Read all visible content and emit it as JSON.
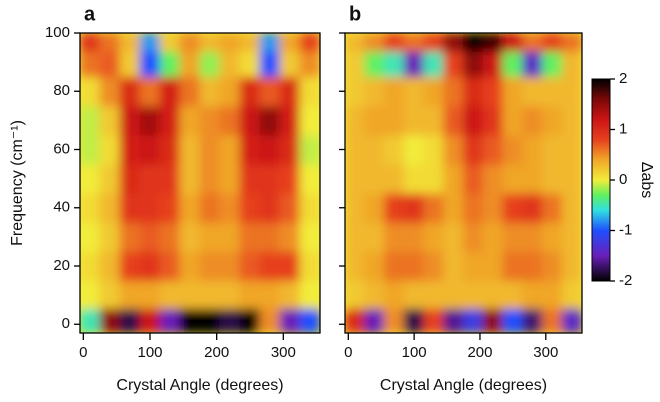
{
  "chart_data": [
    {
      "type": "heatmap",
      "title": "a",
      "xlabel": "Crystal Angle (degrees)",
      "ylabel": "Frequency (cm⁻¹)",
      "xlim": [
        -5,
        355
      ],
      "ylim": [
        -3,
        100
      ],
      "xticks": [
        0,
        100,
        200,
        300
      ],
      "yticks": [
        0,
        20,
        40,
        60,
        80,
        100
      ],
      "x": [
        10,
        40,
        70,
        100,
        130,
        160,
        190,
        220,
        250,
        280,
        310,
        340
      ],
      "y": [
        1,
        10,
        20,
        30,
        40,
        50,
        60,
        70,
        80,
        90,
        97.5
      ],
      "z": [
        [
          -0.5,
          1.5,
          -1.8,
          1.2,
          -1.5,
          2.0,
          -2.0,
          -1.8,
          -2.0,
          0.5,
          -1.5,
          -1.0
        ],
        [
          0.0,
          0.2,
          0.4,
          0.4,
          0.3,
          0.3,
          0.3,
          0.3,
          0.4,
          0.4,
          0.3,
          0.0
        ],
        [
          0.1,
          0.3,
          0.8,
          0.9,
          0.7,
          0.4,
          0.5,
          0.5,
          0.7,
          0.8,
          0.8,
          0.1
        ],
        [
          0.0,
          0.2,
          0.6,
          0.7,
          0.6,
          0.3,
          0.4,
          0.4,
          0.6,
          0.6,
          0.5,
          0.0
        ],
        [
          0.1,
          0.3,
          0.9,
          0.9,
          0.8,
          0.4,
          0.6,
          0.5,
          0.8,
          0.9,
          0.7,
          0.1
        ],
        [
          0.0,
          0.2,
          1.0,
          0.9,
          0.9,
          0.3,
          0.5,
          0.4,
          0.9,
          0.9,
          0.8,
          0.0
        ],
        [
          -0.1,
          0.1,
          1.1,
          1.2,
          1.0,
          0.3,
          0.5,
          0.4,
          1.1,
          1.2,
          1.0,
          -0.1
        ],
        [
          -0.1,
          0.2,
          1.2,
          1.4,
          1.1,
          0.4,
          0.5,
          0.6,
          1.2,
          1.5,
          1.1,
          0.0
        ],
        [
          0.1,
          0.5,
          1.0,
          0.6,
          1.1,
          0.6,
          0.3,
          0.4,
          1.0,
          0.7,
          1.0,
          0.1
        ],
        [
          0.6,
          0.7,
          0.2,
          -1.0,
          -0.3,
          0.4,
          -0.2,
          0.3,
          0.1,
          -1.0,
          0.2,
          0.5
        ],
        [
          0.9,
          0.6,
          0.3,
          -0.8,
          0.2,
          0.5,
          0.3,
          0.4,
          0.3,
          -0.8,
          0.4,
          0.8
        ]
      ],
      "colorscale": [
        {
          "value": -2,
          "color": "#000000"
        },
        {
          "value": -1.5,
          "color": "#6a1fb8"
        },
        {
          "value": -1,
          "color": "#1f4fff"
        },
        {
          "value": -0.6,
          "color": "#30e0e0"
        },
        {
          "value": -0.3,
          "color": "#60f060"
        },
        {
          "value": 0,
          "color": "#f2ec3a"
        },
        {
          "value": 0.4,
          "color": "#f0a628"
        },
        {
          "value": 0.8,
          "color": "#e6401e"
        },
        {
          "value": 1.2,
          "color": "#cc1414"
        },
        {
          "value": 1.6,
          "color": "#7a0808"
        },
        {
          "value": 2,
          "color": "#000000"
        }
      ]
    },
    {
      "type": "heatmap",
      "title": "b",
      "xlabel": "Crystal Angle (degrees)",
      "xlim": [
        -5,
        355
      ],
      "ylim": [
        -3,
        100
      ],
      "xticks": [
        0,
        100,
        200,
        300
      ],
      "yticks": [
        0,
        20,
        40,
        60,
        80,
        100
      ],
      "x": [
        10,
        40,
        70,
        100,
        130,
        160,
        190,
        220,
        250,
        280,
        310,
        340
      ],
      "y": [
        1,
        10,
        20,
        30,
        40,
        50,
        60,
        70,
        80,
        90,
        97.5
      ],
      "z": [
        [
          1.0,
          -1.5,
          0.5,
          -1.8,
          0.8,
          -1.6,
          -1.2,
          1.5,
          -1.0,
          -1.7,
          0.6,
          -1.4
        ],
        [
          0.2,
          0.3,
          0.4,
          0.3,
          0.3,
          0.3,
          0.3,
          0.3,
          0.3,
          0.4,
          0.4,
          0.2
        ],
        [
          0.3,
          0.4,
          0.6,
          0.6,
          0.5,
          0.3,
          0.4,
          0.4,
          0.6,
          0.6,
          0.5,
          0.3
        ],
        [
          0.3,
          0.3,
          0.5,
          0.5,
          0.4,
          0.3,
          0.5,
          0.4,
          0.5,
          0.5,
          0.4,
          0.3
        ],
        [
          0.3,
          0.4,
          0.8,
          0.9,
          0.6,
          0.4,
          0.6,
          0.5,
          0.8,
          0.9,
          0.6,
          0.3
        ],
        [
          0.3,
          0.3,
          0.3,
          0.1,
          0.1,
          0.4,
          0.7,
          0.5,
          0.4,
          0.4,
          0.3,
          0.3
        ],
        [
          0.3,
          0.3,
          0.2,
          0.0,
          0.1,
          0.5,
          0.9,
          0.7,
          0.5,
          0.4,
          0.3,
          0.3
        ],
        [
          0.3,
          0.4,
          0.4,
          0.3,
          0.3,
          0.7,
          1.2,
          0.9,
          0.4,
          0.5,
          0.4,
          0.3
        ],
        [
          0.2,
          0.3,
          0.4,
          0.3,
          0.4,
          0.6,
          1.0,
          0.8,
          0.4,
          0.3,
          0.3,
          0.3
        ],
        [
          0.2,
          -0.3,
          -0.5,
          -1.5,
          -0.5,
          0.8,
          1.5,
          1.2,
          -0.3,
          -1.4,
          -0.3,
          0.3
        ],
        [
          0.3,
          0.5,
          0.8,
          0.6,
          0.8,
          1.5,
          2.0,
          1.8,
          1.2,
          0.6,
          0.8,
          0.6
        ]
      ],
      "colorscale": [
        {
          "value": -2,
          "color": "#000000"
        },
        {
          "value": -1.5,
          "color": "#6a1fb8"
        },
        {
          "value": -1,
          "color": "#1f4fff"
        },
        {
          "value": -0.6,
          "color": "#30e0e0"
        },
        {
          "value": -0.3,
          "color": "#60f060"
        },
        {
          "value": 0,
          "color": "#f2ec3a"
        },
        {
          "value": 0.4,
          "color": "#f0a628"
        },
        {
          "value": 0.8,
          "color": "#e6401e"
        },
        {
          "value": 1.2,
          "color": "#cc1414"
        },
        {
          "value": 1.6,
          "color": "#7a0808"
        },
        {
          "value": 2,
          "color": "#000000"
        }
      ],
      "colorbar": {
        "label": "Δabs",
        "lim": [
          -2,
          2
        ],
        "ticks": [
          2,
          1,
          0,
          -1,
          -2
        ]
      }
    }
  ]
}
